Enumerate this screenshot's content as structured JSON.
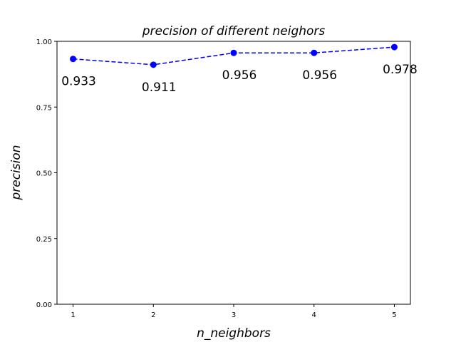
{
  "chart_data": {
    "type": "line",
    "title": "precision of different neighors",
    "xlabel": "n_neighbors",
    "ylabel": "precision",
    "x": [
      1,
      2,
      3,
      4,
      5
    ],
    "x_tick_labels": [
      "1",
      "2",
      "3",
      "4",
      "5"
    ],
    "xlim": [
      0.8,
      5.2
    ],
    "ylim": [
      0.0,
      1.0
    ],
    "y_ticks": [
      0.0,
      0.25,
      0.5,
      0.75,
      1.0
    ],
    "y_tick_labels": [
      "0.00",
      "0.25",
      "0.50",
      "0.75",
      "1.00"
    ],
    "grid": false,
    "series": [
      {
        "name": "precision",
        "values": [
          0.933,
          0.911,
          0.956,
          0.956,
          0.978
        ],
        "color": "#0000ff",
        "line_style": "dashed",
        "marker": "circle"
      }
    ],
    "data_labels": [
      "0.933",
      "0.911",
      "0.956",
      "0.956",
      "0.978"
    ]
  }
}
